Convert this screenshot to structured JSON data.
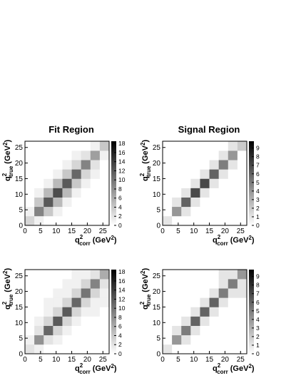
{
  "chart_data": [
    {
      "type": "heatmap",
      "title": "Fit Region",
      "x_label": [
        "q",
        "2",
        "corr",
        "(GeV",
        "2",
        ")"
      ],
      "y_label": [
        "q",
        "2",
        "true",
        "(GeV",
        "2",
        ")"
      ],
      "xbins": [
        0,
        3,
        6,
        9,
        12,
        15,
        18,
        21,
        24,
        27
      ],
      "ybins": [
        0,
        3,
        6,
        9,
        12,
        15,
        18,
        21,
        24,
        27
      ],
      "z": [
        [
          3,
          1,
          0,
          0,
          0,
          0,
          0,
          0,
          0
        ],
        [
          1,
          9,
          4,
          1,
          0,
          0,
          0,
          0,
          0
        ],
        [
          0,
          4,
          12,
          5,
          1,
          0,
          0,
          0,
          0
        ],
        [
          0,
          1,
          5,
          13,
          5,
          1,
          0,
          0,
          0
        ],
        [
          0,
          0,
          1,
          5,
          12,
          4,
          1,
          0,
          0
        ],
        [
          0,
          0,
          0,
          1,
          4,
          11,
          3,
          1,
          0
        ],
        [
          0,
          0,
          0,
          0,
          1,
          3,
          9,
          2,
          0
        ],
        [
          0,
          0,
          0,
          0,
          0,
          1,
          2,
          7,
          1
        ],
        [
          0,
          0,
          0,
          0,
          0,
          0,
          0,
          1,
          4
        ]
      ],
      "xlim": [
        0,
        27
      ],
      "ylim": [
        0,
        27
      ],
      "xticks": [
        0,
        5,
        10,
        15,
        20,
        25
      ],
      "yticks": [
        0,
        5,
        10,
        15,
        20,
        25
      ],
      "zlim": [
        0,
        18.5
      ],
      "zticks": [
        0,
        2,
        4,
        6,
        8,
        10,
        12,
        14,
        16,
        18
      ]
    },
    {
      "type": "heatmap",
      "title": "Signal Region",
      "x_label": [
        "q",
        "2",
        "corr",
        "(GeV",
        "2",
        ")"
      ],
      "y_label": [
        "q",
        "2",
        "true",
        "(GeV",
        "2",
        ")"
      ],
      "xbins": [
        0,
        3,
        6,
        9,
        12,
        15,
        18,
        21,
        24,
        27
      ],
      "ybins": [
        0,
        3,
        6,
        9,
        12,
        15,
        18,
        21,
        24,
        27
      ],
      "z": [
        [
          1,
          0,
          0,
          0,
          0,
          0,
          0,
          0,
          0
        ],
        [
          0,
          4,
          1,
          0,
          0,
          0,
          0,
          0,
          0
        ],
        [
          0,
          1,
          6,
          1,
          0,
          0,
          0,
          0,
          0
        ],
        [
          0,
          0,
          1,
          7,
          1,
          0,
          0,
          0,
          0
        ],
        [
          0,
          0,
          0,
          1,
          7,
          1,
          0,
          0,
          0
        ],
        [
          0,
          0,
          0,
          0,
          1,
          6,
          1,
          0,
          0
        ],
        [
          0,
          0,
          0,
          0,
          0,
          1,
          5,
          1,
          0
        ],
        [
          0,
          0,
          0,
          0,
          0,
          0,
          1,
          4,
          0
        ],
        [
          0,
          0,
          0,
          0,
          0,
          0,
          0,
          1,
          2
        ]
      ],
      "xlim": [
        0,
        27
      ],
      "ylim": [
        0,
        27
      ],
      "xticks": [
        0,
        5,
        10,
        15,
        20,
        25
      ],
      "yticks": [
        0,
        5,
        10,
        15,
        20,
        25
      ],
      "zlim": [
        0,
        9.8
      ],
      "zticks": [
        0,
        1,
        2,
        3,
        4,
        5,
        6,
        7,
        8,
        9
      ]
    },
    {
      "type": "heatmap",
      "x_label": [
        "q",
        "2",
        "corr",
        "(GeV",
        "2",
        ")"
      ],
      "y_label": [
        "q",
        "2",
        "true",
        "(GeV",
        "2",
        ")"
      ],
      "xbins": [
        0,
        3,
        6,
        9,
        12,
        15,
        18,
        21,
        24,
        27
      ],
      "ybins": [
        0,
        3,
        6,
        9,
        12,
        15,
        18,
        21,
        24,
        27
      ],
      "z": [
        [
          2,
          1,
          0,
          0,
          0,
          0,
          0,
          0,
          0
        ],
        [
          1,
          8,
          2,
          1,
          0,
          0,
          0,
          0,
          0
        ],
        [
          0,
          2,
          11,
          3,
          1,
          0,
          0,
          0,
          0
        ],
        [
          0,
          1,
          3,
          12,
          3,
          1,
          0,
          0,
          0
        ],
        [
          0,
          0,
          1,
          3,
          12,
          3,
          1,
          1,
          0
        ],
        [
          0,
          0,
          1,
          1,
          3,
          11,
          3,
          1,
          1
        ],
        [
          0,
          0,
          0,
          1,
          1,
          3,
          10,
          3,
          1
        ],
        [
          0,
          0,
          0,
          0,
          1,
          1,
          3,
          9,
          2
        ],
        [
          0,
          0,
          0,
          0,
          0,
          1,
          1,
          2,
          6
        ]
      ],
      "xlim": [
        0,
        27
      ],
      "ylim": [
        0,
        27
      ],
      "xticks": [
        0,
        5,
        10,
        15,
        20,
        25
      ],
      "yticks": [
        0,
        5,
        10,
        15,
        20,
        25
      ],
      "zlim": [
        0,
        18.5
      ],
      "zticks": [
        0,
        2,
        4,
        6,
        8,
        10,
        12,
        14,
        16,
        18
      ]
    },
    {
      "type": "heatmap",
      "x_label": [
        "q",
        "2",
        "corr",
        "(GeV",
        "2",
        ")"
      ],
      "y_label": [
        "q",
        "2",
        "true",
        "(GeV",
        "2",
        ")"
      ],
      "xbins": [
        0,
        3,
        6,
        9,
        12,
        15,
        18,
        21,
        24,
        27
      ],
      "ybins": [
        0,
        3,
        6,
        9,
        12,
        15,
        18,
        21,
        24,
        27
      ],
      "z": [
        [
          1,
          0,
          0,
          0,
          0,
          0,
          0,
          0,
          0
        ],
        [
          0,
          4,
          1,
          0,
          0,
          0,
          0,
          0,
          0
        ],
        [
          0,
          1,
          5,
          1,
          0,
          0,
          0,
          0,
          0
        ],
        [
          0,
          0,
          1,
          6,
          1,
          0,
          0,
          0,
          0
        ],
        [
          0,
          0,
          0,
          1,
          6,
          1,
          0,
          0,
          0
        ],
        [
          0,
          0,
          0,
          0,
          1,
          6,
          1,
          0,
          0
        ],
        [
          0,
          0,
          0,
          0,
          0,
          1,
          5,
          1,
          1
        ],
        [
          0,
          0,
          0,
          0,
          0,
          0,
          1,
          5,
          1
        ],
        [
          0,
          0,
          0,
          0,
          0,
          0,
          1,
          1,
          4
        ]
      ],
      "xlim": [
        0,
        27
      ],
      "ylim": [
        0,
        27
      ],
      "xticks": [
        0,
        5,
        10,
        15,
        20,
        25
      ],
      "yticks": [
        0,
        5,
        10,
        15,
        20,
        25
      ],
      "zlim": [
        0,
        9.8
      ],
      "zticks": [
        0,
        1,
        2,
        3,
        4,
        5,
        6,
        7,
        8,
        9
      ]
    }
  ]
}
